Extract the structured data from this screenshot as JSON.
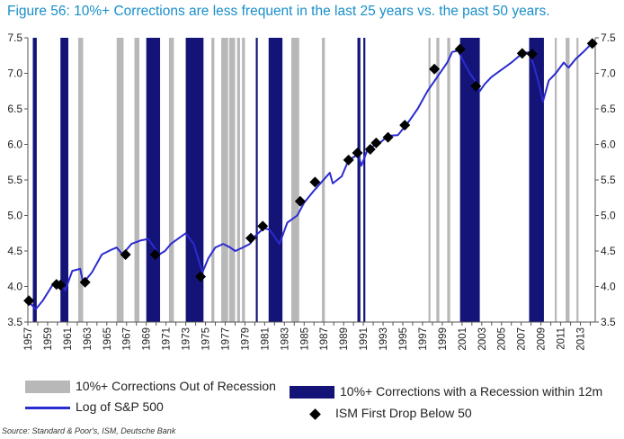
{
  "title": "Figure 56: 10%+ Corrections are less frequent in the last 25 years vs. the past 50 years.",
  "source": "Source: Standard & Poor's, ISM, Deutsche Bank",
  "colors": {
    "title": "#1a8fc9",
    "correction_bar": "#b8b8b8",
    "recession_bar": "#141478",
    "line": "#2b2bd1",
    "marker": "#000000"
  },
  "legend": {
    "corrections": "10%+ Corrections Out of Recession",
    "recession": "10%+ Corrections with a Recession within 12m",
    "line": "Log of S&P 500",
    "ism": "ISM First Drop Below 50"
  },
  "chart_data": {
    "type": "line",
    "x_range": [
      1957,
      2014.5
    ],
    "ylim": [
      3.5,
      7.5
    ],
    "y_ticks": [
      "3.5",
      "4.0",
      "4.5",
      "5.0",
      "5.5",
      "6.0",
      "6.5",
      "7.0",
      "7.5"
    ],
    "x_ticks": [
      "1957",
      "1959",
      "1961",
      "1963",
      "1965",
      "1967",
      "1969",
      "1971",
      "1973",
      "1975",
      "1977",
      "1979",
      "1981",
      "1983",
      "1985",
      "1987",
      "1989",
      "1991",
      "1993",
      "1995",
      "1997",
      "1999",
      "2001",
      "2003",
      "2005",
      "2007",
      "2009",
      "2011",
      "2013"
    ],
    "grid": false,
    "legend_position": "bottom",
    "correction_periods": [
      [
        1962.1,
        1962.6
      ],
      [
        1966.0,
        1966.7
      ],
      [
        1967.8,
        1968.3
      ],
      [
        1971.3,
        1971.8
      ],
      [
        1975.6,
        1975.9
      ],
      [
        1976.6,
        1977.3
      ],
      [
        1977.4,
        1978.0
      ],
      [
        1978.2,
        1978.5
      ],
      [
        1978.7,
        1979.0
      ],
      [
        1983.7,
        1984.5
      ],
      [
        1986.8,
        1987.1
      ],
      [
        1997.6,
        1997.8
      ],
      [
        1998.4,
        1998.7
      ],
      [
        1999.5,
        1999.8
      ],
      [
        2010.4,
        2010.6
      ],
      [
        2011.5,
        2011.9
      ],
      [
        2012.6,
        2012.8
      ]
    ],
    "recession_periods": [
      [
        1957.5,
        1957.9
      ],
      [
        1960.3,
        1961.1
      ],
      [
        1969.0,
        1970.4
      ],
      [
        1973.0,
        1974.8
      ],
      [
        1980.1,
        1980.3
      ],
      [
        1981.4,
        1982.8
      ],
      [
        1990.4,
        1990.7
      ],
      [
        1991.0,
        1991.2
      ],
      [
        2000.8,
        2002.8
      ],
      [
        2007.8,
        2009.3
      ]
    ],
    "series": [
      {
        "type": "line",
        "x": [
          1957.0,
          1957.8,
          1958.5,
          1959.5,
          1960.2,
          1960.8,
          1961.5,
          1962.3,
          1962.6,
          1963.5,
          1964.5,
          1965.5,
          1966.0,
          1966.6,
          1967.5,
          1968.5,
          1969.2,
          1970.3,
          1970.9,
          1971.5,
          1972.5,
          1973.0,
          1973.8,
          1974.7,
          1975.3,
          1976.0,
          1976.8,
          1977.5,
          1978.0,
          1978.8,
          1979.5,
          1980.1,
          1980.9,
          1981.5,
          1982.5,
          1983.3,
          1984.3,
          1985.0,
          1986.0,
          1987.6,
          1987.9,
          1988.8,
          1989.5,
          1990.5,
          1990.8,
          1991.5,
          1992.5,
          1993.5,
          1994.5,
          1995.5,
          1996.5,
          1997.5,
          1998.5,
          1999.5,
          2000.0,
          2000.6,
          2001.2,
          2001.8,
          2002.3,
          2002.8,
          2003.3,
          2004.0,
          2005.0,
          2006.0,
          2007.0,
          2007.8,
          2008.3,
          2008.8,
          2009.2,
          2009.8,
          2010.5,
          2011.3,
          2011.8,
          2012.5,
          2013.3,
          2014.0
        ],
        "y": [
          3.8,
          3.68,
          3.8,
          4.02,
          4.05,
          3.95,
          4.22,
          4.25,
          4.05,
          4.2,
          4.45,
          4.52,
          4.55,
          4.45,
          4.6,
          4.65,
          4.67,
          4.45,
          4.5,
          4.6,
          4.7,
          4.75,
          4.6,
          4.2,
          4.4,
          4.55,
          4.6,
          4.55,
          4.5,
          4.55,
          4.6,
          4.72,
          4.82,
          4.8,
          4.6,
          4.9,
          5.0,
          5.18,
          5.35,
          5.6,
          5.45,
          5.55,
          5.78,
          5.86,
          5.7,
          5.95,
          6.0,
          6.12,
          6.13,
          6.3,
          6.5,
          6.75,
          6.95,
          7.15,
          7.3,
          7.32,
          7.15,
          7.0,
          6.9,
          6.75,
          6.85,
          6.95,
          7.05,
          7.15,
          7.27,
          7.3,
          7.1,
          6.85,
          6.6,
          6.9,
          7.0,
          7.15,
          7.08,
          7.2,
          7.3,
          7.4
        ]
      },
      {
        "type": "scatter",
        "x": [
          1957.1,
          1959.9,
          1960.3,
          1962.8,
          1966.9,
          1969.9,
          1974.5,
          1979.6,
          1980.8,
          1984.6,
          1986.1,
          1989.5,
          1990.4,
          1991.7,
          1992.3,
          1993.5,
          1995.2,
          1998.2,
          2000.8,
          2002.4,
          2007.1,
          2008.1,
          2014.2
        ],
        "y": [
          3.8,
          4.03,
          4.02,
          4.06,
          4.45,
          4.45,
          4.14,
          4.68,
          4.85,
          5.2,
          5.47,
          5.78,
          5.88,
          5.93,
          6.02,
          6.1,
          6.27,
          7.06,
          7.34,
          6.82,
          7.28,
          7.27,
          7.42
        ]
      }
    ]
  }
}
